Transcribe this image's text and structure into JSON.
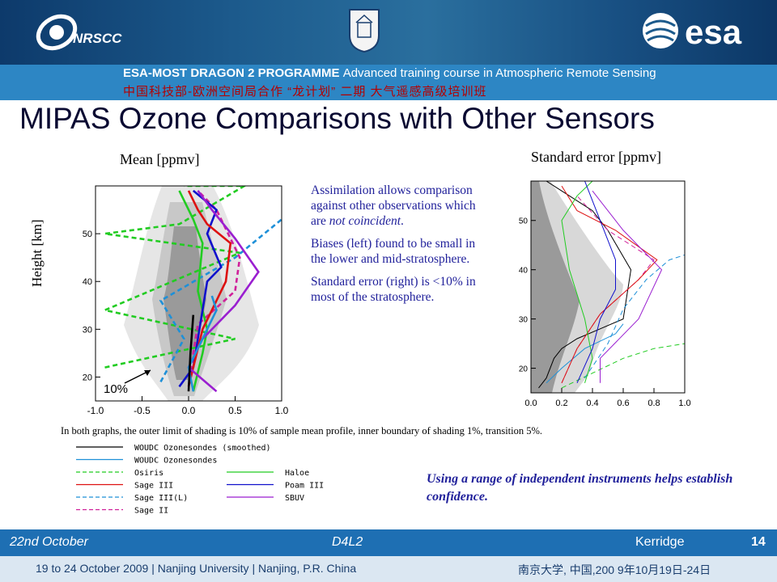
{
  "header": {
    "nrscc_label": "NRSCC",
    "esa_label": "esa",
    "programme": "ESA-MOST DRAGON 2 PROGRAMME",
    "programme_sub": "Advanced training course in Atmospheric Remote Sensing",
    "programme_cn": "中国科技部-欧洲空间局合作 “龙计划” 二期    大气遥感高级培训班"
  },
  "title": "MIPAS Ozone Comparisons with Other Sensors",
  "notes": {
    "p1_pre": "Assimilation allows comparison against other observations which are ",
    "p1_italic": "not coincident",
    "p1_post": ".",
    "p2": "Biases (left) found to be small in  the lower and mid-stratosphere.",
    "p3": "Standard error (right) is <10% in most of the stratosphere."
  },
  "caption": "In both graphs, the outer limit  of shading is 10% of sample mean profile, inner boundary of shading 1%, transition 5%.",
  "confidence": "Using a range of independent instruments helps establish confidence.",
  "footer": {
    "date": "22nd October",
    "session": "D4L2",
    "presenter": "Kerridge",
    "page": "14",
    "venue": "19 to 24 October 2009 | Nanjing University | Nanjing, P.R. China",
    "venue_cn": "南京大学, 中国,200 9年10月19日-24日"
  },
  "legend": [
    {
      "label": "WOUDC Ozonesondes (smoothed)",
      "color": "#000000",
      "dash": false
    },
    {
      "label": "WOUDC Ozonesondes",
      "color": "#1e90d8",
      "dash": false
    },
    {
      "label": "Osiris",
      "color": "#22cc22",
      "dash": true
    },
    {
      "label": "Sage III",
      "color": "#dd1111",
      "dash": false
    },
    {
      "label": "Sage III(L)",
      "color": "#1e90d8",
      "dash": true
    },
    {
      "label": "Sage II",
      "color": "#d0209a",
      "dash": true
    },
    {
      "label": "Haloe",
      "color": "#22cc22",
      "dash": false
    },
    {
      "label": "Poam III",
      "color": "#1010cc",
      "dash": false
    },
    {
      "label": "SBUV",
      "color": "#9a1fd0",
      "dash": false
    }
  ],
  "chart_data": [
    {
      "type": "line",
      "title": "Mean [ppmv]",
      "ylabel": "Height [km]",
      "xlim": [
        -1.0,
        1.0
      ],
      "ylim": [
        15,
        60
      ],
      "xticks": [
        "-1.0",
        "-0.5",
        "0.0",
        "0.5",
        "1.0"
      ],
      "yticks": [
        "20",
        "30",
        "40",
        "50"
      ],
      "annotation": "10%",
      "series": [
        {
          "name": "Osiris",
          "color": "#22cc22",
          "dash": true,
          "x": [
            -0.9,
            0.5,
            -0.9,
            0.55,
            -0.9,
            -0.1,
            0.6,
            -0.05
          ],
          "y": [
            22,
            28,
            34,
            46,
            50,
            52,
            60,
            60
          ]
        },
        {
          "name": "Sage III(L)",
          "color": "#1e90d8",
          "dash": true,
          "x": [
            -0.3,
            -0.05,
            -0.3,
            0.5,
            1.0
          ],
          "y": [
            19,
            28,
            36,
            45,
            53
          ]
        },
        {
          "name": "Sage II",
          "color": "#d0209a",
          "dash": true,
          "x": [
            0.0,
            0.05,
            0.1,
            0.5,
            0.55,
            0.3,
            0.1
          ],
          "y": [
            18,
            25,
            31,
            38,
            45,
            55,
            59
          ]
        },
        {
          "name": "Haloe",
          "color": "#22cc22",
          "dash": false,
          "x": [
            0.05,
            0.1,
            0.15,
            0.2,
            0.1,
            0.15,
            0.05,
            -0.1
          ],
          "y": [
            17,
            21,
            25,
            30,
            38,
            48,
            53,
            59
          ]
        },
        {
          "name": "Poam III",
          "color": "#1010cc",
          "dash": false,
          "x": [
            -0.1,
            0.05,
            0.1,
            0.2,
            0.35,
            0.2,
            0.3,
            0.05
          ],
          "y": [
            18,
            22,
            28,
            40,
            43,
            50,
            55,
            59
          ]
        },
        {
          "name": "Sage III",
          "color": "#dd1111",
          "dash": false,
          "x": [
            0.0,
            0.05,
            0.15,
            0.4,
            0.45,
            0.2,
            0.1,
            0.0
          ],
          "y": [
            18,
            22,
            30,
            40,
            48,
            52,
            55,
            59
          ]
        },
        {
          "name": "SBUV",
          "color": "#9a1fd0",
          "dash": false,
          "x": [
            0.3,
            0.0,
            0.15,
            0.5,
            0.75,
            0.5,
            0.25,
            0.1
          ],
          "y": [
            17,
            22,
            28,
            35,
            42,
            49,
            55,
            59
          ]
        },
        {
          "name": "WOUDC Ozonesondes",
          "color": "#1e90d8",
          "dash": false,
          "x": [
            0.05,
            0.0,
            0.1,
            0.2,
            0.3,
            0.25
          ],
          "y": [
            17,
            22,
            26,
            30,
            34,
            37
          ]
        },
        {
          "name": "WOUDC Ozonesondes (smoothed)",
          "color": "#000000",
          "dash": false,
          "x": [
            0.0,
            0.02,
            0.05
          ],
          "y": [
            17,
            25,
            33
          ]
        }
      ]
    },
    {
      "type": "line",
      "title": "Standard error [ppmv]",
      "xlim": [
        0.0,
        1.0
      ],
      "ylim": [
        15,
        58
      ],
      "xticks": [
        "0.0",
        "0.2",
        "0.4",
        "0.6",
        "0.8",
        "1.0"
      ],
      "yticks": [
        "20",
        "30",
        "40",
        "50"
      ],
      "series": [
        {
          "name": "WOUDC Ozonesondes (smoothed)",
          "color": "#000000",
          "dash": false,
          "x": [
            0.05,
            0.1,
            0.15,
            0.2,
            0.3,
            0.45,
            0.6,
            0.65,
            0.5,
            0.4,
            0.2,
            0.1
          ],
          "y": [
            16,
            18,
            22,
            24,
            26,
            28,
            30,
            40,
            48,
            52,
            56,
            58
          ]
        },
        {
          "name": "WOUDC Ozonesondes",
          "color": "#1e90d8",
          "dash": false,
          "x": [
            0.1,
            0.2,
            0.35,
            0.55,
            0.6
          ],
          "y": [
            17,
            20,
            24,
            27,
            29
          ]
        },
        {
          "name": "Osiris",
          "color": "#22cc22",
          "dash": true,
          "x": [
            0.2,
            0.4,
            0.6,
            0.8,
            1.0
          ],
          "y": [
            16,
            19,
            22,
            24,
            25
          ]
        },
        {
          "name": "Sage III(L)",
          "color": "#1e90d8",
          "dash": true,
          "x": [
            0.35,
            0.5,
            0.6,
            0.75,
            0.9,
            1.0
          ],
          "y": [
            18,
            25,
            32,
            38,
            42,
            43
          ]
        },
        {
          "name": "Sage II",
          "color": "#d0209a",
          "dash": true,
          "x": [
            0.2,
            0.3,
            0.45,
            0.7,
            0.8,
            0.5,
            0.3
          ],
          "y": [
            17,
            24,
            31,
            38,
            42,
            48,
            55
          ]
        },
        {
          "name": "Sage III",
          "color": "#dd1111",
          "dash": false,
          "x": [
            0.2,
            0.3,
            0.45,
            0.7,
            0.82,
            0.55,
            0.3,
            0.2
          ],
          "y": [
            17,
            24,
            31,
            38,
            42,
            48,
            52,
            57
          ]
        },
        {
          "name": "Haloe",
          "color": "#22cc22",
          "dash": false,
          "x": [
            0.35,
            0.4,
            0.35,
            0.25,
            0.2,
            0.3,
            0.4
          ],
          "y": [
            17,
            22,
            30,
            40,
            50,
            55,
            58
          ]
        },
        {
          "name": "Poam III",
          "color": "#1010cc",
          "dash": false,
          "x": [
            0.3,
            0.4,
            0.45,
            0.55,
            0.55,
            0.45,
            0.35
          ],
          "y": [
            17,
            24,
            30,
            36,
            42,
            50,
            58
          ]
        },
        {
          "name": "SBUV",
          "color": "#9a1fd0",
          "dash": false,
          "x": [
            0.45,
            0.45,
            0.7,
            0.85,
            0.6,
            0.4
          ],
          "y": [
            17,
            22,
            30,
            40,
            48,
            56
          ]
        }
      ]
    }
  ]
}
